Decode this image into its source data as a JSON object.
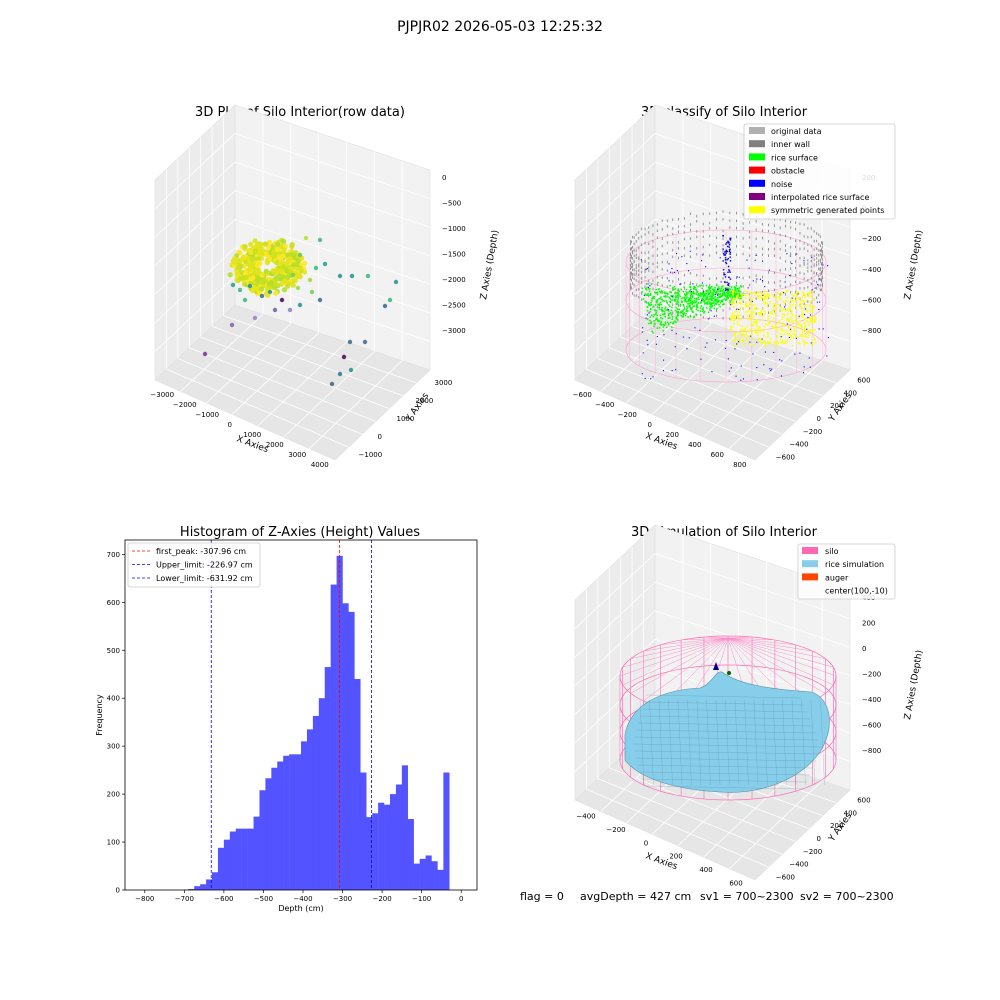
{
  "figure": {
    "suptitle": "PJPJR02 2026-05-03 12:25:32",
    "footer": {
      "flag": "flag = 0",
      "avg": "avgDepth = 427 cm",
      "sv1": "sv1 = 700~2300",
      "sv2": "sv2 = 700~2300"
    }
  },
  "chart_data": [
    {
      "type": "scatter",
      "projection": "3d",
      "title": "3D Plot of Silo Interior(row data)",
      "xlabel": "X Axies",
      "ylabel": "Y Axies",
      "zlabel": "Z Axies (Depth)",
      "xticks": [
        "−3000",
        "−2000",
        "−1000",
        "0",
        "1000",
        "2000",
        "3000",
        "4000"
      ],
      "yticks": [
        "−1000",
        "0",
        "1000",
        "2000",
        "3000"
      ],
      "zticks": [
        "0",
        "−500",
        "−1000",
        "−1500",
        "−2000",
        "−2500",
        "−3000"
      ],
      "colormap": "viridis"
    },
    {
      "type": "scatter",
      "projection": "3d",
      "title": "3D classify of Silo Interior",
      "xlabel": "X Axies",
      "ylabel": "Y Axies",
      "zlabel": "Z Axies (Depth)",
      "xticks": [
        "−600",
        "−400",
        "−200",
        "0",
        "200",
        "400",
        "600",
        "800"
      ],
      "yticks": [
        "−600",
        "−400",
        "−200",
        "0",
        "200",
        "400",
        "600"
      ],
      "zticks": [
        "200",
        "0",
        "−200",
        "−400",
        "−600",
        "−800"
      ],
      "legend": [
        {
          "label": "original data",
          "color": "#b0b0b0"
        },
        {
          "label": "inner wall",
          "color": "#808080"
        },
        {
          "label": "rice surface",
          "color": "#00ff00"
        },
        {
          "label": "obstacle",
          "color": "#ff0000"
        },
        {
          "label": "noise",
          "color": "#0000ff"
        },
        {
          "label": "interpolated rice surface",
          "color": "#800080"
        },
        {
          "label": "symmetric generated points",
          "color": "#ffff00"
        }
      ],
      "legend_position": "top-right"
    },
    {
      "type": "bar",
      "title": "Histogram of Z-Axies (Height) Values",
      "xlabel": "Depth (cm)",
      "ylabel": "Frequency",
      "bin_width": 15,
      "bin_left_edges": [
        -690,
        -675,
        -660,
        -645,
        -630,
        -615,
        -600,
        -585,
        -570,
        -555,
        -540,
        -525,
        -510,
        -495,
        -480,
        -465,
        -450,
        -435,
        -420,
        -405,
        -390,
        -375,
        -360,
        -345,
        -330,
        -315,
        -300,
        -285,
        -270,
        -255,
        -240,
        -225,
        -210,
        -195,
        -180,
        -165,
        -150,
        -135,
        -120,
        -105,
        -90,
        -75,
        -60,
        -45,
        -30,
        -15
      ],
      "values": [
        2,
        8,
        12,
        22,
        37,
        88,
        105,
        122,
        128,
        128,
        128,
        153,
        208,
        233,
        255,
        268,
        280,
        283,
        283,
        310,
        335,
        363,
        400,
        465,
        637,
        697,
        598,
        580,
        440,
        245,
        152,
        160,
        182,
        178,
        200,
        220,
        260,
        148,
        55,
        65,
        72,
        60,
        42,
        245,
        0,
        0
      ],
      "xlim": [
        -850,
        40
      ],
      "ylim": [
        0,
        730
      ],
      "xticks": [
        "−800",
        "−700",
        "−600",
        "−500",
        "−400",
        "−300",
        "−200",
        "−100",
        "0"
      ],
      "yticks": [
        "0",
        "100",
        "200",
        "300",
        "400",
        "500",
        "600",
        "700"
      ],
      "bar_color": "#4a4aff",
      "vlines": [
        {
          "x": -307.96,
          "color": "#ff0000",
          "label": "first_peak: -307.96 cm"
        },
        {
          "x": -226.97,
          "color": "#0000ff",
          "label": "Upper_limit: -226.97 cm"
        },
        {
          "x": -631.92,
          "color": "#0000ff",
          "label": "Lower_limit: -631.92 cm"
        }
      ],
      "legend_position": "top-left"
    },
    {
      "type": "surface",
      "projection": "3d",
      "title": "3D simulation of Silo Interior",
      "xlabel": "X Axies",
      "ylabel": "Y Axies",
      "zlabel": "Z Axies (Depth)",
      "xticks": [
        "−400",
        "−200",
        "0",
        "200",
        "400",
        "600"
      ],
      "yticks": [
        "−600",
        "−400",
        "−200",
        "0",
        "200",
        "400",
        "600"
      ],
      "zticks": [
        "400",
        "200",
        "0",
        "−200",
        "−400",
        "−600",
        "−800"
      ],
      "legend": [
        {
          "label": "silo",
          "color": "#ff69b4"
        },
        {
          "label": "rice simulation",
          "color": "#87ceeb"
        },
        {
          "label": "auger",
          "color": "#ff4500"
        },
        {
          "label": "center(100,-10)",
          "color": "none"
        }
      ],
      "legend_position": "top-right"
    }
  ]
}
